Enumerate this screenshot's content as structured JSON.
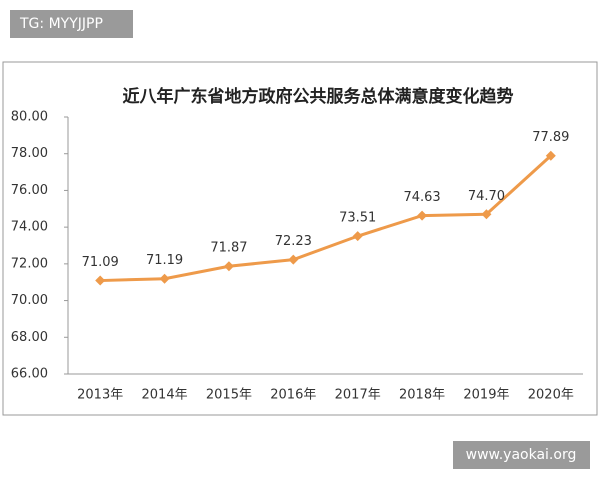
{
  "chart_data": {
    "type": "line",
    "title": "近八年广东省地方政府公共服务总体满意度变化趋势",
    "categories": [
      "2013年",
      "2014年",
      "2015年",
      "2016年",
      "2017年",
      "2018年",
      "2019年",
      "2020年"
    ],
    "values": [
      71.09,
      71.19,
      71.87,
      72.23,
      73.51,
      74.63,
      74.7,
      77.89
    ],
    "value_labels": [
      "71.09",
      "71.19",
      "71.87",
      "72.23",
      "73.51",
      "74.63",
      "74.70",
      "77.89"
    ],
    "color": "#ee9a4a",
    "ylim": [
      66,
      80
    ],
    "yticks": [
      {
        "value": 66,
        "label": "66.00"
      },
      {
        "value": 68,
        "label": "68.00"
      },
      {
        "value": 70,
        "label": "70.00"
      },
      {
        "value": 72,
        "label": "72.00"
      },
      {
        "value": 74,
        "label": "74.00"
      },
      {
        "value": 76,
        "label": "76.00"
      },
      {
        "value": 78,
        "label": "78.00"
      },
      {
        "value": 80,
        "label": "80.00"
      }
    ],
    "grid": false
  },
  "watermarks": [
    "TG: MYYJJPP",
    "www.yaokai.org"
  ]
}
